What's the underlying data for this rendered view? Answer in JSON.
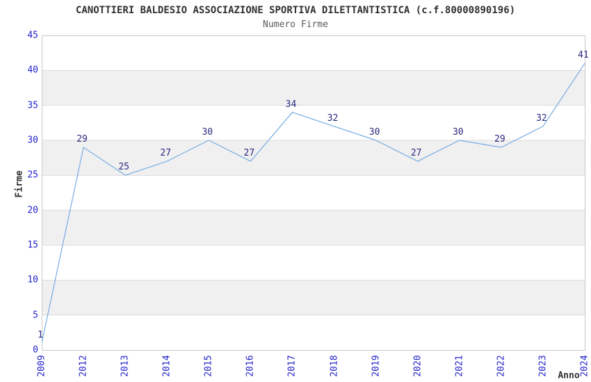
{
  "chart_data": {
    "type": "line",
    "title": "CANOTTIERI BALDESIO ASSOCIAZIONE SPORTIVA DILETTANTISTICA (c.f.80000890196)",
    "subtitle": "Numero Firme",
    "categories": [
      "2009",
      "2012",
      "2013",
      "2014",
      "2015",
      "2016",
      "2017",
      "2018",
      "2019",
      "2020",
      "2021",
      "2022",
      "2023",
      "2024"
    ],
    "values": [
      1,
      29,
      25,
      27,
      30,
      27,
      34,
      32,
      30,
      27,
      30,
      29,
      32,
      41
    ],
    "data_labels": [
      "1",
      "29",
      "25",
      "27",
      "30",
      "27",
      "34",
      "32",
      "30",
      "27",
      "30",
      "29",
      "32",
      "41"
    ],
    "xlabel": "Anno",
    "ylabel": "Firme",
    "ylim": [
      0,
      45
    ],
    "ytick_step": 5,
    "ytick_labels": [
      "0",
      "5",
      "10",
      "15",
      "20",
      "25",
      "30",
      "35",
      "40",
      "45"
    ],
    "grid": true,
    "legend": false,
    "band_alternating": true,
    "colors": {
      "line": "#77ace3",
      "tick_label": "#2222cc",
      "data_label": "#29297f",
      "band_gray": "#f0f0f0",
      "band_white": "#ffffff",
      "grid_line": "#dcdcdc",
      "plot_border": "#c8c8c8",
      "title_text": "#303030",
      "subtitle_text": "#5a5a5a"
    }
  }
}
